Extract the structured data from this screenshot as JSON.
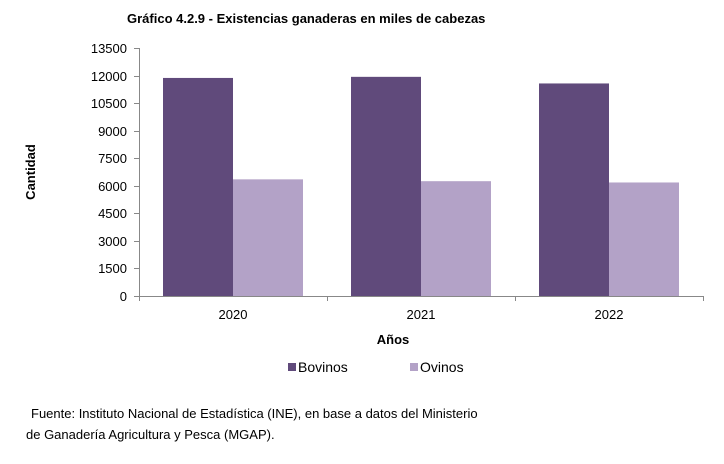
{
  "chart_data": {
    "type": "bar",
    "title": "Gráfico 4.2.9 - Existencias ganaderas en miles de cabezas",
    "xlabel": "Años",
    "ylabel": "Cantidad",
    "categories": [
      "2020",
      "2021",
      "2022"
    ],
    "ylim": [
      0,
      13500
    ],
    "yticks": [
      0,
      1500,
      3000,
      4500,
      6000,
      7500,
      9000,
      10500,
      12000,
      13500
    ],
    "grid": false,
    "legend": "bottom",
    "series": [
      {
        "name": "Bovinos",
        "values": [
          11870,
          11930,
          11570
        ],
        "color": "#604a7b"
      },
      {
        "name": "Ovinos",
        "values": [
          6350,
          6250,
          6180
        ],
        "color": "#b3a2c7"
      }
    ]
  },
  "footnote": {
    "line1": "Fuente: Instituto Nacional de Estadística (INE), en base a datos del Ministerio",
    "line2": "de Ganadería Agricultura y Pesca (MGAP)."
  }
}
